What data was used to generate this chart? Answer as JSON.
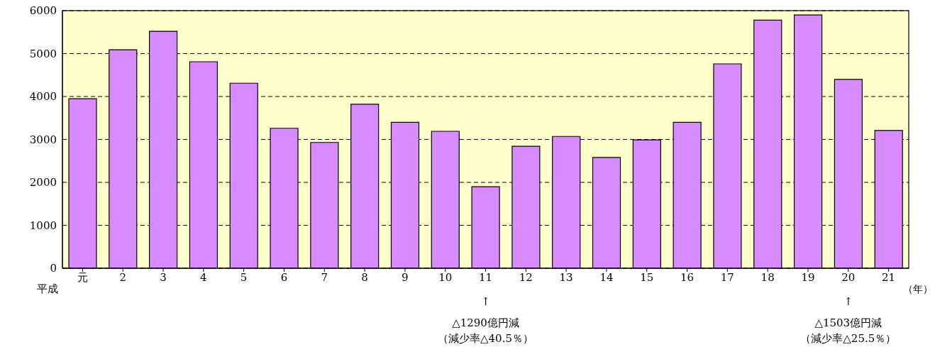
{
  "chart_data": {
    "type": "bar",
    "xlabel": "（年）",
    "categories": [
      "元",
      "2",
      "3",
      "4",
      "5",
      "6",
      "7",
      "8",
      "9",
      "10",
      "11",
      "12",
      "13",
      "14",
      "15",
      "16",
      "17",
      "18",
      "19",
      "20",
      "21"
    ],
    "values": [
      3950,
      5090,
      5520,
      4810,
      4310,
      3260,
      2930,
      3820,
      3400,
      3190,
      1900,
      2840,
      3070,
      2580,
      2990,
      3400,
      4760,
      5780,
      5900,
      4400,
      3210
    ],
    "color": "#d98cff",
    "ylim": [
      0,
      6000
    ],
    "yticks": [
      0,
      1000,
      2000,
      3000,
      4000,
      5000,
      6000
    ],
    "grid": "y",
    "annotations": [
      "平成",
      "↑",
      "△1290億円減",
      "（減少率△40.5％）",
      "↑",
      "△1503億円減",
      "（減少率△25.5％）"
    ]
  }
}
